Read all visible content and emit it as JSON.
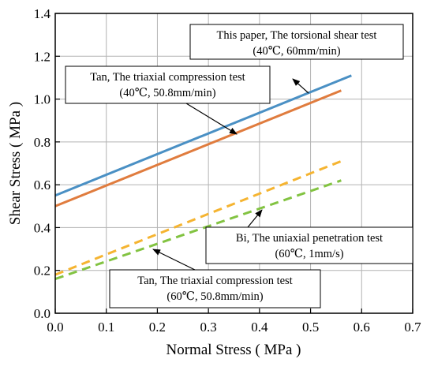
{
  "chart_data": {
    "type": "line",
    "title": "",
    "xlabel": "Normal Stress ( MPa )",
    "ylabel": "Shear Stress ( MPa )",
    "xlim": [
      0.0,
      0.7
    ],
    "ylim": [
      0.0,
      1.4
    ],
    "xticks": [
      "0.0",
      "0.1",
      "0.2",
      "0.3",
      "0.4",
      "0.5",
      "0.6",
      "0.7"
    ],
    "yticks": [
      "0.0",
      "0.2",
      "0.4",
      "0.6",
      "0.8",
      "1.0",
      "1.2",
      "1.4"
    ],
    "grid": true,
    "series": [
      {
        "name": "This paper, The torsional shear test (40℃, 60mm/min)",
        "x": [
          0.0,
          0.58
        ],
        "y": [
          0.55,
          1.11
        ],
        "color": "#4a90c4",
        "dash": "solid"
      },
      {
        "name": "Tan, The triaxial compression test (40℃, 50.8mm/min)",
        "x": [
          0.0,
          0.56
        ],
        "y": [
          0.5,
          1.04
        ],
        "color": "#e07c3e",
        "dash": "solid"
      },
      {
        "name": "Bi, The uniaxial penetration test (60℃, 1mm/s)",
        "x": [
          0.0,
          0.56
        ],
        "y": [
          0.18,
          0.71
        ],
        "color": "#f5b431",
        "dash": "dashed"
      },
      {
        "name": "Tan, The triaxial compression test (60℃, 50.8mm/min)",
        "x": [
          0.0,
          0.56
        ],
        "y": [
          0.16,
          0.62
        ],
        "color": "#82c341",
        "dash": "dashed"
      }
    ],
    "annotations": [
      {
        "line1": "This paper, The torsional shear test",
        "line2": "(40℃, 60mm/min)",
        "points_to": "This paper, The torsional shear test (40℃, 60mm/min)"
      },
      {
        "line1": "Tan, The triaxial compression test",
        "line2": "(40℃, 50.8mm/min)",
        "points_to": "Tan, The triaxial compression test (40℃, 50.8mm/min)"
      },
      {
        "line1": "Bi, The uniaxial penetration test",
        "line2": "(60℃,  1mm/s)",
        "points_to": "Bi, The uniaxial penetration test (60℃, 1mm/s)"
      },
      {
        "line1": "Tan, The triaxial compression test",
        "line2": "(60℃,  50.8mm/min)",
        "points_to": "Tan, The triaxial compression test (60℃, 50.8mm/min)"
      }
    ]
  }
}
